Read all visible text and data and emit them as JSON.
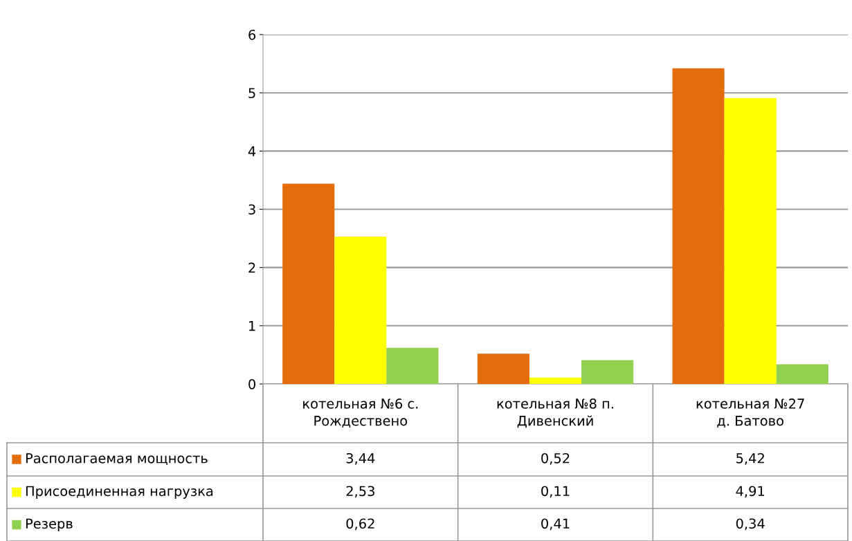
{
  "chart_data": {
    "type": "bar",
    "categories": [
      "котельная №6 с.\nРождествено",
      "котельная №8 п.\nДивенский",
      "котельная №27\nд. Батово"
    ],
    "series": [
      {
        "name": "Располагаемая мощность",
        "color": "#e46c0a",
        "values": [
          3.44,
          0.52,
          5.42
        ],
        "value_labels": [
          "3,44",
          "0,52",
          "5,42"
        ]
      },
      {
        "name": "Присоединенная нагрузка",
        "color": "#ffff00",
        "values": [
          2.53,
          0.11,
          4.91
        ],
        "value_labels": [
          "2,53",
          "0,11",
          "4,91"
        ]
      },
      {
        "name": "Резерв",
        "color": "#92d050",
        "values": [
          0.62,
          0.41,
          0.34
        ],
        "value_labels": [
          "0,62",
          "0,41",
          "0,34"
        ]
      }
    ],
    "ylim": [
      0,
      6
    ],
    "yticks": [
      0,
      1,
      2,
      3,
      4,
      5,
      6
    ],
    "grid": "y",
    "legend": "bottom"
  }
}
